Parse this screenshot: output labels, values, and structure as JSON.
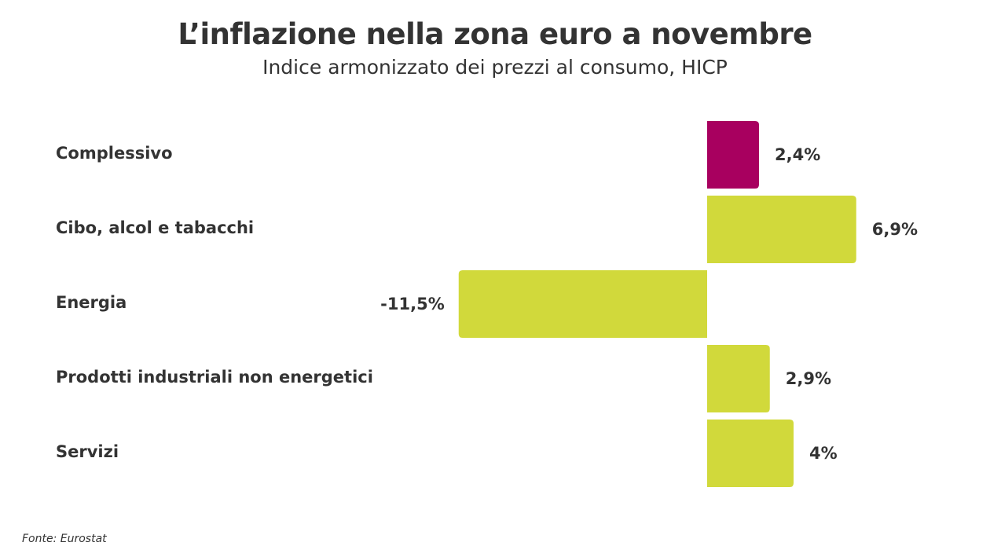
{
  "chart_data": {
    "type": "bar",
    "orientation": "horizontal",
    "title": "L’inflazione nella zona euro a novembre",
    "subtitle": "Indice armonizzato dei prezzi al consumo, HICP",
    "categories": [
      "Complessivo",
      "Cibo, alcol e tabacchi",
      "Energia",
      "Prodotti industriali non energetici",
      "Servizi"
    ],
    "values": [
      2.4,
      6.9,
      -11.5,
      2.9,
      4
    ],
    "value_labels": [
      "2,4%",
      "6,9%",
      "-11,5%",
      "2,9%",
      "4%"
    ],
    "colors": [
      "#a8005f",
      "#d1d93b",
      "#d1d93b",
      "#d1d93b",
      "#d1d93b"
    ],
    "grid": false,
    "legend": "none"
  },
  "source": "Fonte: Eurostat"
}
